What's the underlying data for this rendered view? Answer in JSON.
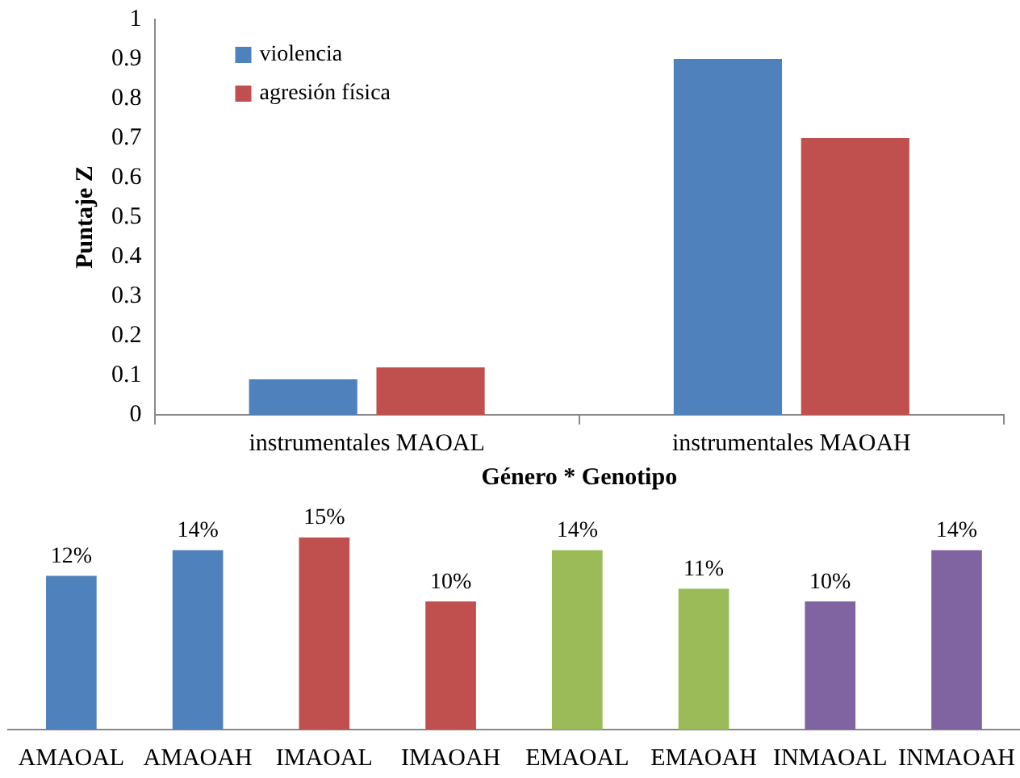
{
  "chart_data": [
    {
      "type": "bar",
      "xlabel": "Género * Genotipo",
      "ylabel": "Puntaje Z",
      "categories": [
        "instrumentales MAOAL",
        "instrumentales MAOAH"
      ],
      "series": [
        {
          "name": "violencia",
          "color": "#4f81bd",
          "values": [
            0.09,
            0.9
          ]
        },
        {
          "name": "agresión física",
          "color": "#c0504d",
          "values": [
            0.12,
            0.7
          ]
        }
      ],
      "ylim": [
        0,
        1
      ],
      "yticks": [
        0,
        0.1,
        0.2,
        0.3,
        0.4,
        0.5,
        0.6,
        0.7,
        0.8,
        0.9,
        1
      ],
      "grid": false,
      "legend": "top left",
      "tick_labels": "xy"
    },
    {
      "type": "bar",
      "categories": [
        "AMAOAL",
        "AMAOAH",
        "IMAOAL",
        "IMAOAH",
        "EMAOAL",
        "EMAOAH",
        "INMAOAL",
        "INMAOAH"
      ],
      "values": [
        12,
        14,
        15,
        10,
        14,
        11,
        10,
        14
      ],
      "colors": [
        "#4f81bd",
        "#4f81bd",
        "#c0504d",
        "#c0504d",
        "#9bbb59",
        "#9bbb59",
        "#8064a2",
        "#8064a2"
      ],
      "value_labels": [
        "12%",
        "14%",
        "15%",
        "10%",
        "14%",
        "11%",
        "10%",
        "14%"
      ],
      "grid": false,
      "legend": false,
      "tick_labels": "x"
    }
  ]
}
